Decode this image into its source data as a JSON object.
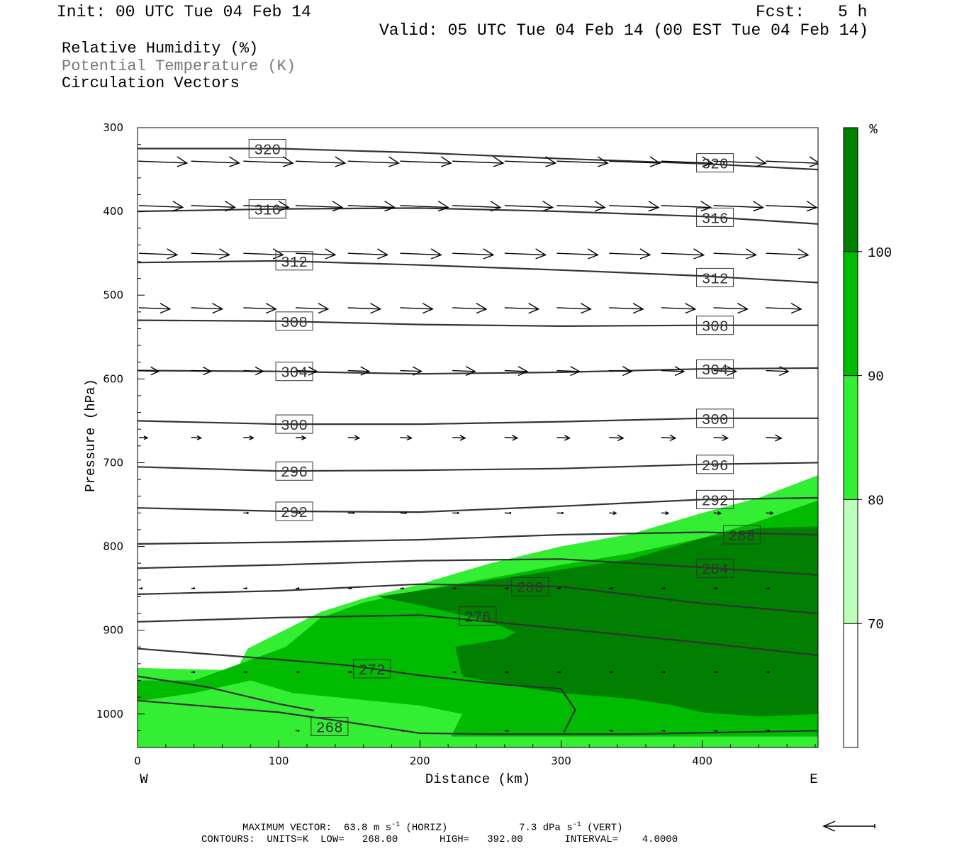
{
  "header": {
    "init": "Init: 00 UTC Tue 04 Feb 14",
    "fcst_label": "Fcst:",
    "fcst_value": "5 h",
    "valid": "Valid: 05 UTC Tue 04 Feb 14 (00 EST Tue 04 Feb 14)"
  },
  "legend": {
    "line1": "Relative Humidity (%)",
    "line2": "Potential Temperature (K)",
    "line3": "Circulation Vectors"
  },
  "footer": {
    "max_vector_label": "MAXIMUM VECTOR:",
    "max_vector_horiz": "63.8 m s",
    "max_vector_horiz_unit": "(HORIZ)",
    "max_vector_vert": "7.3 dPa s",
    "max_vector_vert_unit": "(VERT)",
    "exponent": "-1",
    "contours": "CONTOURS:  UNITS=K  LOW=   268.00       HIGH=   392.00       INTERVAL=    4.0000"
  },
  "chart_data": {
    "type": "contour-cross-section",
    "xlabel": "Distance (km)",
    "ylabel": "Pressure (hPa)",
    "xlim": [
      0,
      482
    ],
    "ylim": [
      1040,
      300
    ],
    "x_ticks": [
      0,
      100,
      200,
      300,
      400
    ],
    "y_ticks": [
      300,
      400,
      500,
      600,
      700,
      800,
      900,
      1000
    ],
    "x_left_label": "W",
    "x_right_label": "E",
    "colorbar": {
      "unit": "%",
      "levels": [
        70,
        80,
        90,
        100
      ],
      "colors": [
        "#ffffff",
        "#bbffbb",
        "#33ee33",
        "#00bb00",
        "#007f00"
      ]
    },
    "theta_contours": [
      {
        "label": "320",
        "x": [
          0,
          100,
          200,
          300,
          400,
          482
        ],
        "p": [
          325,
          325,
          330,
          337,
          343,
          350
        ],
        "label_positions": [
          [
            92,
            325
          ],
          [
            409,
            342
          ]
        ]
      },
      {
        "label": "316",
        "x": [
          0,
          100,
          200,
          300,
          400,
          482
        ],
        "p": [
          400,
          397,
          396,
          400,
          406,
          415
        ],
        "label_positions": [
          [
            92,
            397
          ],
          [
            409,
            407
          ]
        ]
      },
      {
        "label": "312",
        "x": [
          0,
          100,
          200,
          300,
          400,
          482
        ],
        "p": [
          461,
          459,
          464,
          470,
          477,
          485
        ],
        "label_positions": [
          [
            111,
            459
          ],
          [
            409,
            479
          ]
        ]
      },
      {
        "label": "308",
        "x": [
          0,
          100,
          200,
          300,
          400,
          482
        ],
        "p": [
          530,
          531,
          535,
          537,
          536,
          536
        ],
        "label_positions": [
          [
            111,
            531
          ],
          [
            409,
            536
          ]
        ]
      },
      {
        "label": "304",
        "x": [
          0,
          100,
          200,
          300,
          400,
          482
        ],
        "p": [
          590,
          591,
          594,
          592,
          588,
          587
        ],
        "label_positions": [
          [
            111,
            591
          ],
          [
            409,
            588
          ]
        ]
      },
      {
        "label": "300",
        "x": [
          0,
          100,
          200,
          300,
          400,
          482
        ],
        "p": [
          650,
          654,
          654,
          651,
          647,
          647
        ],
        "label_positions": [
          [
            111,
            654
          ],
          [
            409,
            647
          ]
        ]
      },
      {
        "label": "296",
        "x": [
          0,
          100,
          200,
          300,
          400,
          482
        ],
        "p": [
          705,
          710,
          709,
          707,
          702,
          700
        ],
        "label_positions": [
          [
            111,
            710
          ],
          [
            409,
            702
          ]
        ]
      },
      {
        "label": "292",
        "x": [
          0,
          100,
          200,
          300,
          400,
          482
        ],
        "p": [
          754,
          758,
          759,
          752,
          744,
          742
        ],
        "label_positions": [
          [
            111,
            758
          ],
          [
            409,
            744
          ]
        ]
      },
      {
        "label": "288",
        "x": [
          0,
          100,
          200,
          300,
          400,
          482
        ],
        "p": [
          797,
          795,
          792,
          786,
          783,
          786
        ],
        "label_positions": [
          [
            428,
            786
          ]
        ]
      },
      {
        "label": "284",
        "x": [
          0,
          100,
          200,
          300,
          400,
          482
        ],
        "p": [
          826,
          822,
          817,
          815,
          825,
          834
        ],
        "label_positions": [
          [
            409,
            826
          ]
        ]
      },
      {
        "label": "280",
        "x": [
          0,
          100,
          200,
          300,
          400,
          482
        ],
        "p": [
          857,
          853,
          845,
          848,
          868,
          880
        ],
        "label_positions": [
          [
            278,
            848
          ]
        ]
      },
      {
        "label": "276",
        "x": [
          0,
          100,
          200,
          300,
          400,
          482
        ],
        "p": [
          890,
          885,
          882,
          898,
          915,
          930
        ],
        "label_positions": [
          [
            241,
            883
          ]
        ]
      },
      {
        "label": "272",
        "x": [
          0,
          100,
          150,
          200,
          260,
          300,
          310,
          302
        ],
        "p": [
          922,
          935,
          942,
          954,
          965,
          970,
          995,
          1022
        ],
        "label_positions": [
          [
            166,
            946
          ]
        ]
      },
      {
        "label": "268",
        "x": [
          0,
          100,
          150,
          200,
          250,
          300,
          350,
          482
        ],
        "p": [
          984,
          998,
          1010,
          1023,
          1024,
          1024,
          1024,
          1020
        ],
        "label_positions": [
          [
            136,
            1015
          ]
        ]
      }
    ],
    "extra_contour": {
      "x": [
        0,
        50,
        100,
        125
      ],
      "p": [
        955,
        968,
        988,
        996
      ]
    },
    "rh_regions": [
      {
        "level": 80,
        "x": [
          0,
          70,
          78,
          130,
          160,
          200,
          250,
          300,
          350,
          400,
          440,
          482,
          482,
          0
        ],
        "p": [
          945,
          948,
          922,
          878,
          862,
          845,
          820,
          800,
          785,
          760,
          742,
          715,
          1040,
          1040
        ]
      },
      {
        "level": 90,
        "x": [
          0,
          40,
          105,
          130,
          160,
          200,
          250,
          300,
          350,
          400,
          440,
          482,
          482,
          350,
          300,
          250,
          222,
          230,
          200,
          170,
          110,
          80,
          40,
          0
        ],
        "p": [
          960,
          960,
          920,
          885,
          867,
          852,
          838,
          822,
          808,
          790,
          770,
          745,
          1027,
          1027,
          1027,
          1027,
          1027,
          1000,
          990,
          985,
          975,
          960,
          975,
          985
        ]
      },
      {
        "level": 100,
        "x": [
          170,
          220,
          290,
          350,
          400,
          440,
          482,
          482,
          440,
          400,
          380,
          350,
          300,
          260,
          230,
          225,
          260,
          280,
          300,
          320,
          350,
          300,
          250,
          200,
          170
        ],
        "p": [
          860,
          848,
          830,
          815,
          790,
          778,
          776,
          1000,
          1003,
          998,
          990,
          982,
          975,
          965,
          955,
          920,
          910,
          890,
          890,
          900,
          930,
          925,
          890,
          870,
          860
        ]
      }
    ],
    "wind_vectors": {
      "rows": [
        {
          "p": 340,
          "x": [
            0,
            37,
            74,
            111,
            148,
            185,
            222,
            259,
            296,
            333,
            370,
            407,
            444
          ],
          "len_km": [
            34,
            34,
            35,
            35,
            36,
            36,
            36,
            36,
            36,
            36,
            36,
            37,
            38
          ]
        },
        {
          "p": 393,
          "x": [
            0,
            37,
            74,
            111,
            148,
            185,
            222,
            259,
            296,
            333,
            370,
            407,
            444
          ],
          "len_km": [
            31,
            31,
            32,
            33,
            33,
            34,
            34,
            34,
            34,
            35,
            35,
            35,
            36
          ]
        },
        {
          "p": 450,
          "x": [
            0,
            37,
            74,
            111,
            148,
            185,
            222,
            259,
            296,
            333,
            370,
            407,
            444
          ],
          "len_km": [
            27,
            27,
            28,
            28,
            28,
            29,
            29,
            29,
            29,
            29,
            30,
            30,
            30
          ]
        },
        {
          "p": 515,
          "x": [
            0,
            37,
            74,
            111,
            148,
            185,
            222,
            259,
            296,
            333,
            370,
            407,
            444
          ],
          "len_km": [
            22,
            22,
            23,
            23,
            23,
            23,
            24,
            24,
            24,
            24,
            24,
            24,
            25
          ]
        },
        {
          "p": 590,
          "x": [
            0,
            37,
            74,
            111,
            148,
            185,
            222,
            259,
            296,
            333,
            370,
            407,
            444
          ],
          "len_km": [
            14,
            14,
            14,
            15,
            15,
            15,
            16,
            16,
            16,
            16,
            16,
            16,
            16
          ]
        },
        {
          "p": 670,
          "x": [
            0,
            37,
            74,
            111,
            148,
            185,
            222,
            259,
            296,
            333,
            370,
            407,
            444
          ],
          "len_km": [
            6,
            7,
            7,
            7,
            8,
            8,
            9,
            9,
            9,
            10,
            10,
            10,
            11
          ]
        },
        {
          "p": 760,
          "x": [
            74,
            111,
            148,
            185,
            222,
            259,
            296,
            333,
            370,
            407,
            444
          ],
          "len_km": [
            3,
            3,
            4,
            4,
            4,
            4,
            4,
            5,
            5,
            5,
            5
          ]
        },
        {
          "p": 850,
          "x": [
            0,
            37,
            74,
            111,
            148,
            185,
            222,
            259,
            296,
            333,
            370,
            407,
            444
          ],
          "len_km": [
            2,
            2,
            2,
            2,
            2,
            2,
            2,
            2,
            2,
            2,
            2,
            2,
            2
          ]
        },
        {
          "p": 950,
          "x": [
            37,
            74,
            111,
            148,
            222,
            259,
            296,
            333,
            370,
            407,
            444
          ],
          "len_km": [
            2,
            2,
            2,
            2,
            2,
            2,
            2,
            2,
            2,
            2,
            2
          ]
        },
        {
          "p": 1020,
          "x": [
            111,
            185,
            259,
            333,
            370,
            407,
            444
          ],
          "len_km": [
            2,
            2,
            2,
            2,
            2,
            2,
            2
          ]
        }
      ]
    }
  }
}
